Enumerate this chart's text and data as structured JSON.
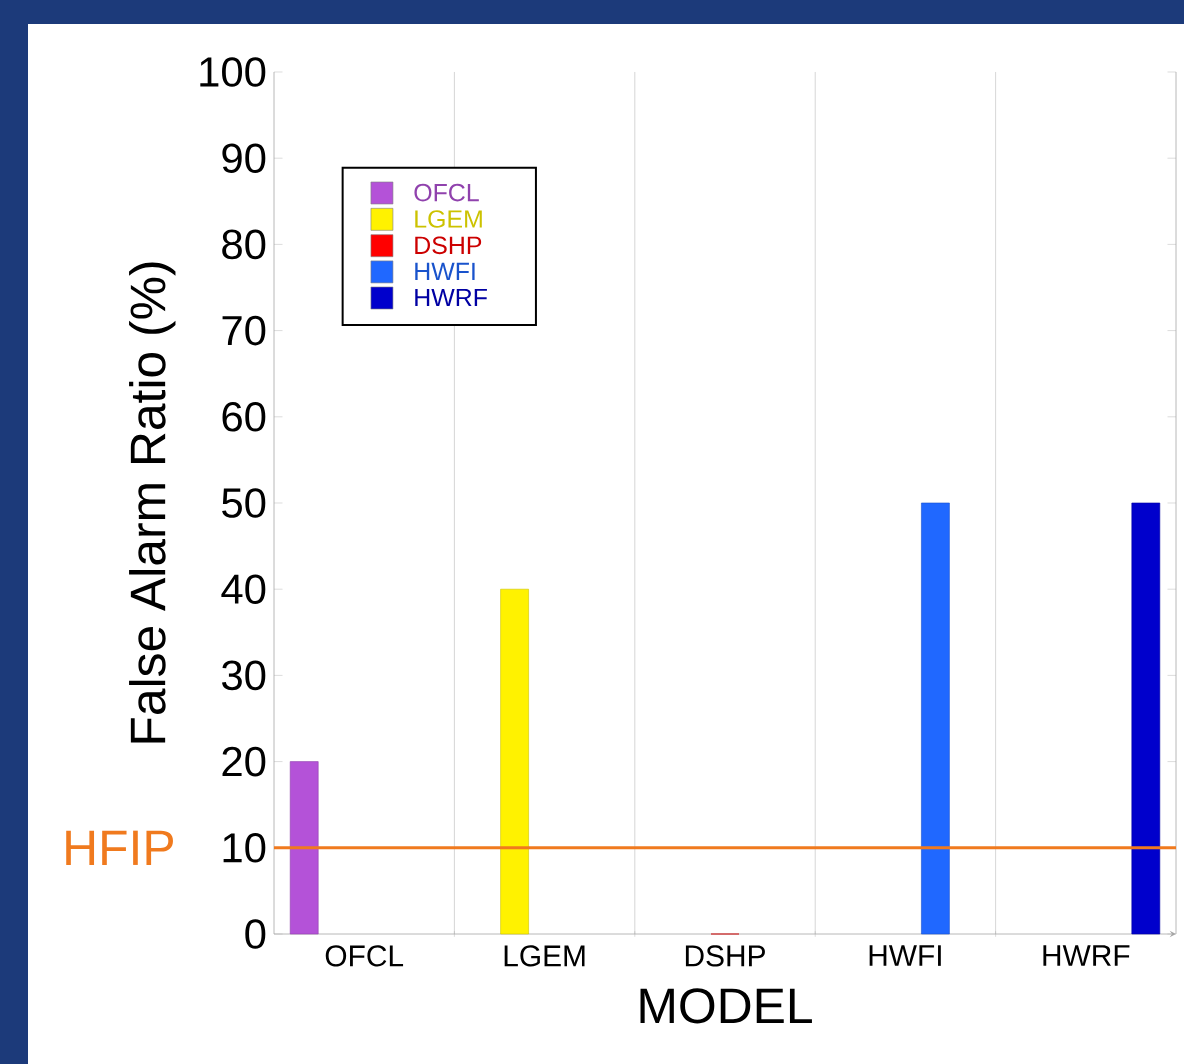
{
  "chart_data": {
    "type": "bar",
    "xlabel": "MODEL",
    "ylabel": "False Alarm Ratio (%)",
    "categories": [
      "OFCL",
      "LGEM",
      "DSHP",
      "HWFI",
      "HWRF"
    ],
    "series": [
      {
        "name": "OFCL",
        "color": "#b452d8",
        "values": [
          20,
          null,
          null,
          null,
          null
        ]
      },
      {
        "name": "LGEM",
        "color": "#fff200",
        "values": [
          null,
          40,
          null,
          null,
          null
        ]
      },
      {
        "name": "DSHP",
        "color": "#ff0000",
        "values": [
          null,
          null,
          0,
          null,
          null
        ]
      },
      {
        "name": "HWFI",
        "color": "#2068ff",
        "values": [
          null,
          null,
          null,
          50,
          null
        ]
      },
      {
        "name": "HWRF",
        "color": "#0000cc",
        "values": [
          null,
          null,
          null,
          null,
          50
        ]
      }
    ],
    "ylim": [
      0,
      100
    ],
    "yticks": [
      0,
      10,
      20,
      30,
      40,
      50,
      60,
      70,
      80,
      90,
      100
    ],
    "grid": "x",
    "legend": "top left",
    "ref_lines": [
      {
        "axis": "y",
        "value": 10,
        "label": "HFIP",
        "color": "#f07a1e"
      }
    ]
  }
}
